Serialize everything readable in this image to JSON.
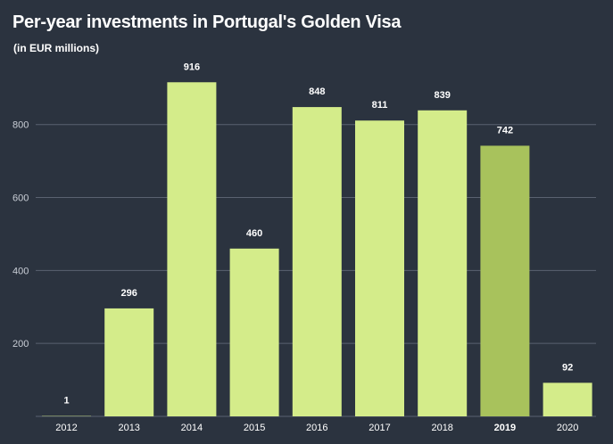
{
  "chart_data": {
    "type": "bar",
    "title": "Per-year investments in Portugal's Golden Visa",
    "subtitle": "(in EUR millions)",
    "xlabel": "",
    "ylabel": "",
    "categories": [
      "2012",
      "2013",
      "2014",
      "2015",
      "2016",
      "2017",
      "2018",
      "2019",
      "2020"
    ],
    "values": [
      1,
      296,
      916,
      460,
      848,
      811,
      839,
      742,
      92
    ],
    "value_labels": [
      "1",
      "296",
      "916",
      "460",
      "848",
      "811",
      "839",
      "742",
      "92"
    ],
    "highlighted": "2019",
    "yticks": [
      200,
      400,
      600,
      800
    ],
    "ytick_labels": [
      "200",
      "400",
      "600",
      "800"
    ],
    "ylim": [
      0,
      1000
    ],
    "grid": true,
    "colors": {
      "background": "#2b333f",
      "bar": "#d4ec8a",
      "bar_highlight": "#a8c25c",
      "gridline": "#5a6270",
      "text": "#ffffff"
    }
  }
}
